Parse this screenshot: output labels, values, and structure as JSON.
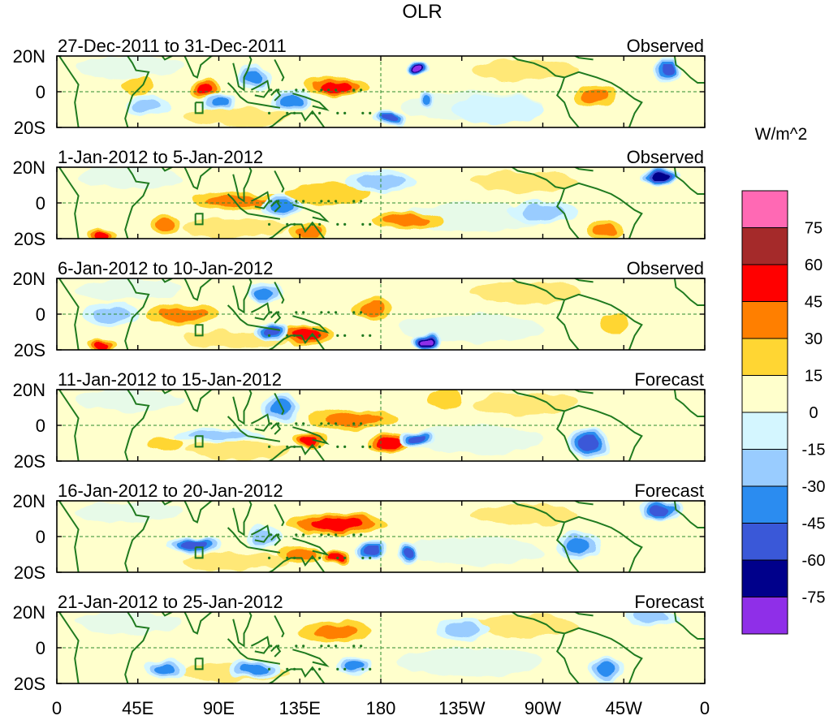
{
  "chart_data": {
    "type": "heatmap",
    "title": "OLR",
    "units_label": "W/m^2",
    "x_ticks": [
      "0",
      "45E",
      "90E",
      "135E",
      "180",
      "135W",
      "90W",
      "45W",
      "0"
    ],
    "x_range_deg": [
      0,
      360
    ],
    "y_ticks": [
      "20N",
      "0",
      "20S"
    ],
    "y_range_deg": [
      -20,
      20
    ],
    "colorbar": {
      "labels": [
        "75",
        "60",
        "45",
        "30",
        "15",
        "0",
        "-15",
        "-30",
        "-45",
        "-60",
        "-75"
      ],
      "colors": [
        "#ff69b4",
        "#a52a2a",
        "#ff0000",
        "#ff7f00",
        "#ffd633",
        "#ffffcc",
        "#d4f6ff",
        "#99ccff",
        "#2b8cf0",
        "#3a58d8",
        "#00008b",
        "#8f2fe8"
      ]
    },
    "panels": [
      {
        "period": "27-Dec-2011 to 31-Dec-2011",
        "kind": "Observed",
        "anomalies": [
          {
            "lon": 82,
            "lat": 2,
            "rx": 8,
            "ry": 5,
            "v": 52
          },
          {
            "lon": 90,
            "lat": -6,
            "rx": 10,
            "ry": 5,
            "v": -35
          },
          {
            "lon": 110,
            "lat": 8,
            "rx": 10,
            "ry": 7,
            "v": -32
          },
          {
            "lon": 155,
            "lat": 3,
            "rx": 18,
            "ry": 6,
            "v": 48
          },
          {
            "lon": 130,
            "lat": -5,
            "rx": 12,
            "ry": 6,
            "v": -30
          },
          {
            "lon": 45,
            "lat": 3,
            "rx": 10,
            "ry": 5,
            "v": 20
          },
          {
            "lon": 200,
            "lat": 13,
            "rx": 7,
            "ry": 5,
            "v": -78
          },
          {
            "lon": 205,
            "lat": -5,
            "rx": 5,
            "ry": 5,
            "v": -40
          },
          {
            "lon": 185,
            "lat": -15,
            "rx": 10,
            "ry": 4,
            "v": -55
          },
          {
            "lon": 300,
            "lat": -2,
            "rx": 12,
            "ry": 6,
            "v": 35
          },
          {
            "lon": 340,
            "lat": 12,
            "rx": 8,
            "ry": 6,
            "v": -50
          },
          {
            "lon": 50,
            "lat": -8,
            "rx": 12,
            "ry": 6,
            "v": -25
          },
          {
            "lon": 245,
            "lat": -10,
            "rx": 25,
            "ry": 8,
            "v": -12
          }
        ]
      },
      {
        "period": "1-Jan-2012 to 5-Jan-2012",
        "kind": "Observed",
        "anomalies": [
          {
            "lon": 150,
            "lat": 5,
            "rx": 25,
            "ry": 6,
            "v": 28
          },
          {
            "lon": 100,
            "lat": 1,
            "rx": 25,
            "ry": 5,
            "v": 32
          },
          {
            "lon": 125,
            "lat": -2,
            "rx": 12,
            "ry": 6,
            "v": -35
          },
          {
            "lon": 25,
            "lat": -18,
            "rx": 8,
            "ry": 4,
            "v": 45
          },
          {
            "lon": 60,
            "lat": -12,
            "rx": 8,
            "ry": 6,
            "v": 30
          },
          {
            "lon": 140,
            "lat": -16,
            "rx": 10,
            "ry": 4,
            "v": 40
          },
          {
            "lon": 195,
            "lat": -10,
            "rx": 20,
            "ry": 5,
            "v": 35
          },
          {
            "lon": 335,
            "lat": 15,
            "rx": 12,
            "ry": 5,
            "v": -60
          },
          {
            "lon": 305,
            "lat": -15,
            "rx": 10,
            "ry": 5,
            "v": 40
          },
          {
            "lon": 180,
            "lat": 12,
            "rx": 20,
            "ry": 6,
            "v": -15
          },
          {
            "lon": 270,
            "lat": -5,
            "rx": 20,
            "ry": 6,
            "v": -20
          }
        ]
      },
      {
        "period": "6-Jan-2012 to 10-Jan-2012",
        "kind": "Observed",
        "anomalies": [
          {
            "lon": 70,
            "lat": 0,
            "rx": 20,
            "ry": 6,
            "v": 35
          },
          {
            "lon": 140,
            "lat": -12,
            "rx": 15,
            "ry": 6,
            "v": 55
          },
          {
            "lon": 120,
            "lat": -10,
            "rx": 10,
            "ry": 5,
            "v": -50
          },
          {
            "lon": 205,
            "lat": -15,
            "rx": 10,
            "ry": 5,
            "v": -78
          },
          {
            "lon": 25,
            "lat": -17,
            "rx": 8,
            "ry": 4,
            "v": 50
          },
          {
            "lon": 115,
            "lat": 12,
            "rx": 10,
            "ry": 6,
            "v": -40
          },
          {
            "lon": 175,
            "lat": 3,
            "rx": 12,
            "ry": 6,
            "v": 30
          },
          {
            "lon": 30,
            "lat": 0,
            "rx": 15,
            "ry": 7,
            "v": -25
          },
          {
            "lon": 310,
            "lat": -5,
            "rx": 8,
            "ry": 5,
            "v": 28
          },
          {
            "lon": 250,
            "lat": 5,
            "rx": 30,
            "ry": 8,
            "v": 12
          }
        ]
      },
      {
        "period": "11-Jan-2012 to 15-Jan-2012",
        "kind": "Forecast",
        "anomalies": [
          {
            "lon": 165,
            "lat": 3,
            "rx": 25,
            "ry": 6,
            "v": 38
          },
          {
            "lon": 185,
            "lat": -10,
            "rx": 12,
            "ry": 5,
            "v": 45
          },
          {
            "lon": 140,
            "lat": -8,
            "rx": 10,
            "ry": 5,
            "v": 50
          },
          {
            "lon": 200,
            "lat": -8,
            "rx": 10,
            "ry": 5,
            "v": -55
          },
          {
            "lon": 215,
            "lat": 15,
            "rx": 10,
            "ry": 5,
            "v": 25
          },
          {
            "lon": 90,
            "lat": -5,
            "rx": 25,
            "ry": 4,
            "v": -28
          },
          {
            "lon": 295,
            "lat": -10,
            "rx": 12,
            "ry": 8,
            "v": -45
          },
          {
            "lon": 60,
            "lat": -10,
            "rx": 10,
            "ry": 4,
            "v": 22
          },
          {
            "lon": 125,
            "lat": 10,
            "rx": 10,
            "ry": 8,
            "v": -30
          }
        ]
      },
      {
        "period": "16-Jan-2012 to 20-Jan-2012",
        "kind": "Forecast",
        "anomalies": [
          {
            "lon": 155,
            "lat": 7,
            "rx": 28,
            "ry": 6,
            "v": 52
          },
          {
            "lon": 75,
            "lat": -5,
            "rx": 15,
            "ry": 5,
            "v": -55
          },
          {
            "lon": 155,
            "lat": -12,
            "rx": 8,
            "ry": 4,
            "v": 50
          },
          {
            "lon": 175,
            "lat": -8,
            "rx": 8,
            "ry": 5,
            "v": -50
          },
          {
            "lon": 195,
            "lat": -10,
            "rx": 6,
            "ry": 7,
            "v": -45
          },
          {
            "lon": 135,
            "lat": -10,
            "rx": 12,
            "ry": 5,
            "v": 32
          },
          {
            "lon": 335,
            "lat": 15,
            "rx": 12,
            "ry": 6,
            "v": -45
          },
          {
            "lon": 290,
            "lat": -5,
            "rx": 12,
            "ry": 8,
            "v": -30
          },
          {
            "lon": 115,
            "lat": 0,
            "rx": 10,
            "ry": 6,
            "v": -25
          }
        ]
      },
      {
        "period": "21-Jan-2012 to 25-Jan-2012",
        "kind": "Forecast",
        "anomalies": [
          {
            "lon": 155,
            "lat": 9,
            "rx": 20,
            "ry": 6,
            "v": 40
          },
          {
            "lon": 60,
            "lat": -12,
            "rx": 12,
            "ry": 6,
            "v": -38
          },
          {
            "lon": 110,
            "lat": -12,
            "rx": 15,
            "ry": 6,
            "v": -30
          },
          {
            "lon": 165,
            "lat": -10,
            "rx": 10,
            "ry": 5,
            "v": -30
          },
          {
            "lon": 305,
            "lat": -12,
            "rx": 10,
            "ry": 7,
            "v": -35
          },
          {
            "lon": 330,
            "lat": 17,
            "rx": 15,
            "ry": 5,
            "v": -28
          },
          {
            "lon": 200,
            "lat": -2,
            "rx": 20,
            "ry": 10,
            "v": 14
          },
          {
            "lon": 225,
            "lat": 10,
            "rx": 15,
            "ry": 6,
            "v": -15
          }
        ]
      }
    ]
  }
}
